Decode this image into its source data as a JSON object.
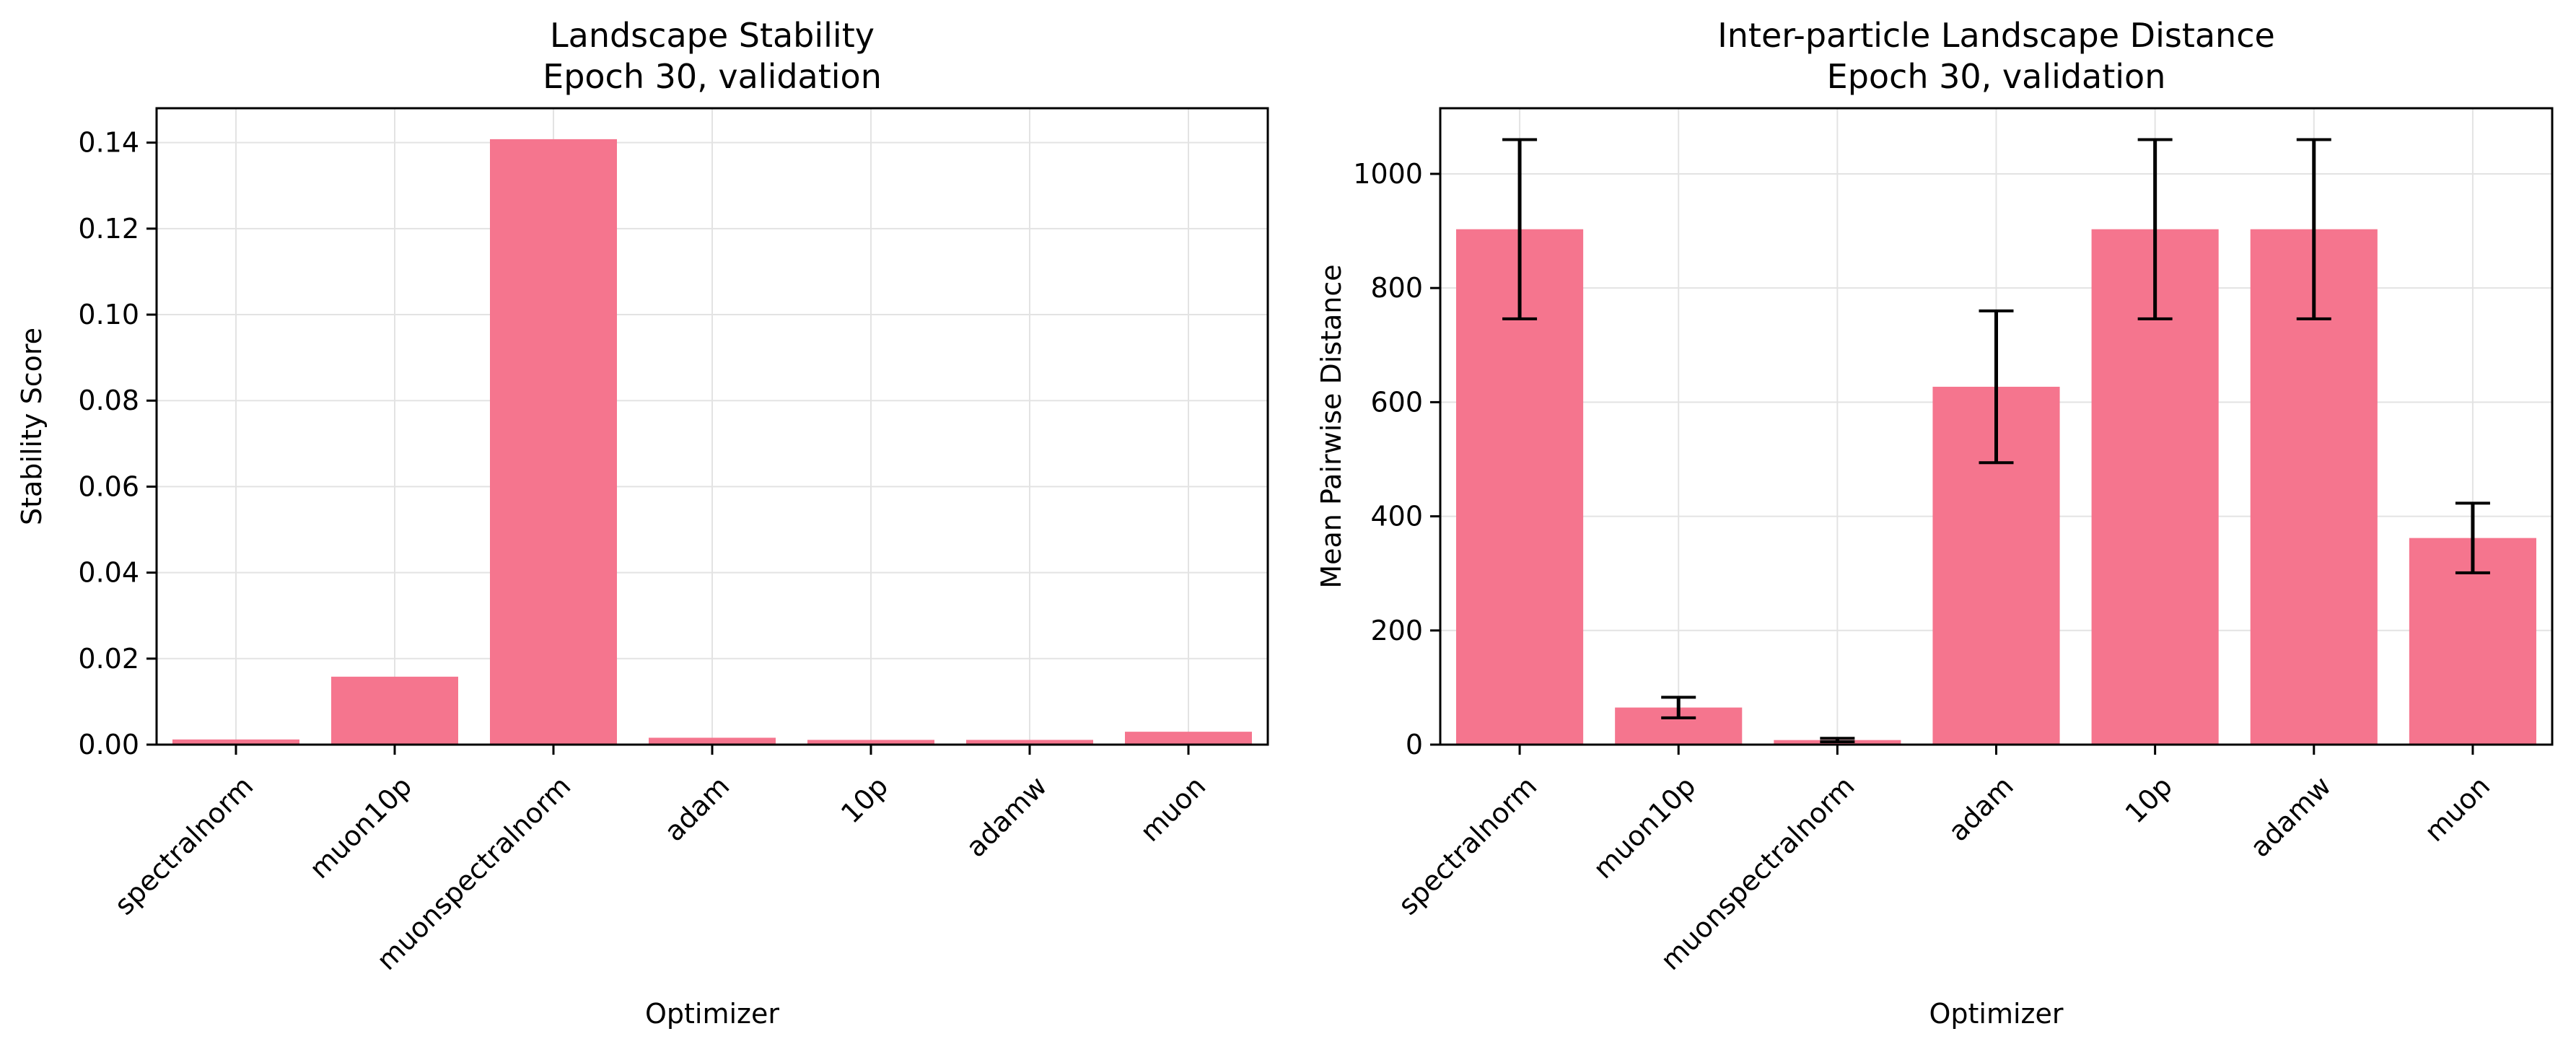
{
  "colors": {
    "bar": "#f5758e",
    "errorbar": "#000000",
    "grid": "#e3e3e3",
    "axis": "#000000"
  },
  "chart_data": [
    {
      "type": "bar",
      "title_line1": "Landscape Stability",
      "title_line2": "Epoch 30, validation",
      "xlabel": "Optimizer",
      "ylabel": "Stability Score",
      "categories": [
        "spectralnorm",
        "muon10p",
        "muonspectralnorm",
        "adam",
        "10p",
        "adamw",
        "muon"
      ],
      "values": [
        0.0012,
        0.0158,
        0.1408,
        0.0016,
        0.0011,
        0.0011,
        0.003
      ],
      "ylim": [
        0,
        0.148
      ],
      "yticks": [
        0.0,
        0.02,
        0.04,
        0.06,
        0.08,
        0.1,
        0.12,
        0.14
      ],
      "ytick_labels": [
        "0.00",
        "0.02",
        "0.04",
        "0.06",
        "0.08",
        "0.10",
        "0.12",
        "0.14"
      ],
      "grid": true
    },
    {
      "type": "bar",
      "title_line1": "Inter-particle Landscape Distance",
      "title_line2": "Epoch 30, validation",
      "xlabel": "Optimizer",
      "ylabel": "Mean Pairwise Distance",
      "categories": [
        "spectralnorm",
        "muon10p",
        "muonspectralnorm",
        "adam",
        "10p",
        "adamw",
        "muon"
      ],
      "values": [
        903,
        65,
        8,
        627,
        903,
        903,
        362
      ],
      "errors": [
        157,
        18,
        3,
        133,
        157,
        157,
        61
      ],
      "ylim": [
        0,
        1115
      ],
      "yticks": [
        0,
        200,
        400,
        600,
        800,
        1000
      ],
      "ytick_labels": [
        "0",
        "200",
        "400",
        "600",
        "800",
        "1000"
      ],
      "grid": true
    }
  ]
}
